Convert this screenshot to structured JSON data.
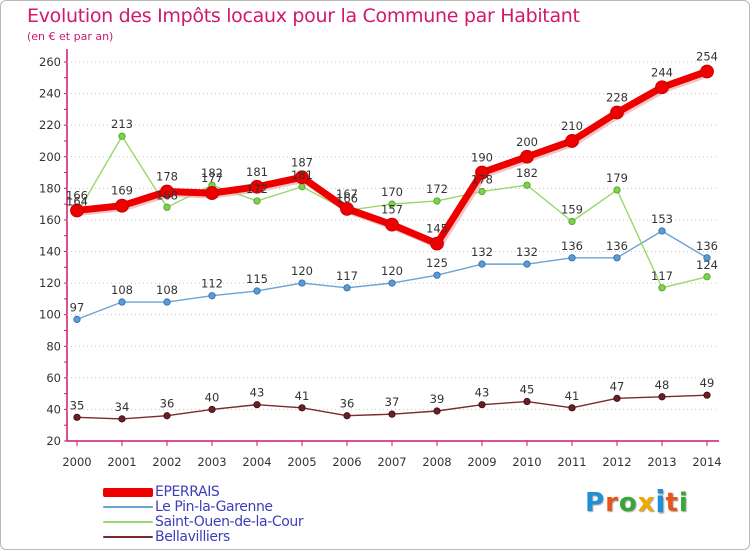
{
  "title": "Evolution des Impôts locaux pour la Commune par Habitant",
  "subtitle": "(en € et par an)",
  "logo": {
    "text": "Proxiti",
    "colors": [
      "#1f8fd6",
      "#e8541e",
      "#3aa63a",
      "#f2a800",
      "#1f8fd6",
      "#e8541e",
      "#3aa63a"
    ]
  },
  "chart_data": {
    "type": "line",
    "title": "Evolution des Impôts locaux pour la Commune par Habitant",
    "subtitle": "(en € et par an)",
    "x": [
      "2000",
      "2001",
      "2002",
      "2003",
      "2004",
      "2005",
      "2006",
      "2007",
      "2008",
      "2009",
      "2010",
      "2011",
      "2012",
      "2013",
      "2014"
    ],
    "ylim": [
      20,
      260
    ],
    "yticks": [
      20,
      40,
      60,
      80,
      100,
      120,
      140,
      160,
      180,
      200,
      220,
      240,
      260
    ],
    "grid": "horizontal dotted",
    "legend_position": "bottom-left",
    "series": [
      {
        "name": "EPERRAIS",
        "color": "#e60000",
        "values": [
          166,
          169,
          178,
          177,
          181,
          187,
          167,
          157,
          145,
          190,
          200,
          210,
          228,
          244,
          254
        ],
        "labels": [
          "166",
          "169",
          "178",
          "177",
          "181",
          "187",
          "167",
          "157",
          "145",
          "190",
          "200",
          "210",
          "228",
          "244",
          "254"
        ]
      },
      {
        "name": "Le Pin-la-Garenne",
        "color": "#5b9bd5",
        "values": [
          97,
          108,
          108,
          112,
          115,
          120,
          117,
          120,
          125,
          132,
          132,
          136,
          136,
          153,
          136
        ],
        "labels": [
          "97",
          "108",
          "108",
          "112",
          "115",
          "120",
          "117",
          "120",
          "125",
          "132",
          "132",
          "136",
          "136",
          "153",
          "136"
        ]
      },
      {
        "name": "Saint-Ouen-de-la-Cour",
        "color": "#99d86b",
        "values": [
          164,
          213,
          168,
          182,
          172,
          181,
          166,
          170,
          172,
          178,
          182,
          159,
          179,
          117,
          124
        ],
        "labels": [
          "164",
          "213",
          "168",
          "182",
          "172",
          "181",
          "166",
          "170",
          "172",
          "178",
          "182",
          "159",
          "179",
          "117",
          "124"
        ]
      },
      {
        "name": "Bellavilliers",
        "color": "#6b1e24",
        "values": [
          35,
          34,
          36,
          40,
          43,
          41,
          36,
          37,
          39,
          43,
          45,
          41,
          47,
          48,
          49
        ],
        "labels": [
          "35",
          "34",
          "36",
          "40",
          "43",
          "41",
          "36",
          "37",
          "39",
          "43",
          "45",
          "41",
          "47",
          "48",
          "49"
        ]
      }
    ]
  }
}
